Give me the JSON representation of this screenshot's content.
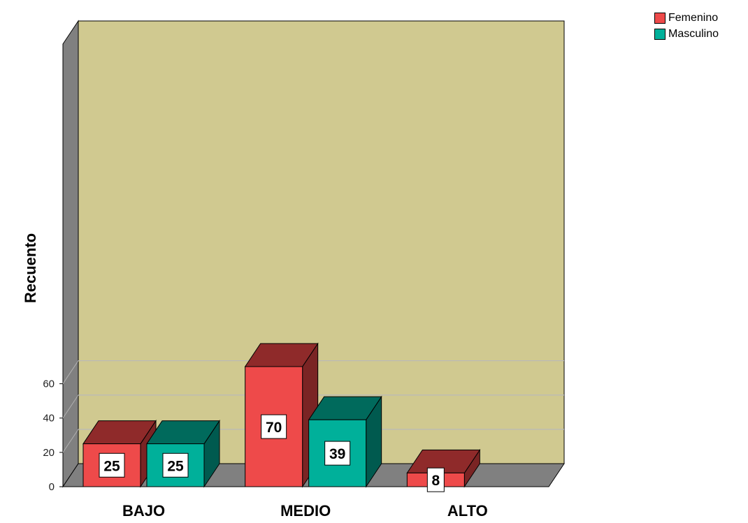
{
  "chart_data": {
    "type": "bar",
    "categories": [
      "BAJO",
      "MEDIO",
      "ALTO"
    ],
    "series": [
      {
        "name": "Femenino",
        "values": [
          25,
          70,
          8
        ],
        "color": "#ee4a4a",
        "top_color": "#8f2a2a",
        "side_color": "#7a2424"
      },
      {
        "name": "Masculino",
        "values": [
          25,
          39,
          null
        ],
        "color": "#00b09a",
        "top_color": "#006a5c",
        "side_color": "#005a4f"
      }
    ],
    "ylabel": "Recuento",
    "xlabel": "",
    "ylim": [
      0,
      70
    ],
    "yticks": [
      0,
      20,
      40,
      60
    ],
    "grid": true,
    "legend_position": "top-right",
    "style": "3d",
    "plot_background": "#d0c990",
    "wall_color": "#808080"
  }
}
